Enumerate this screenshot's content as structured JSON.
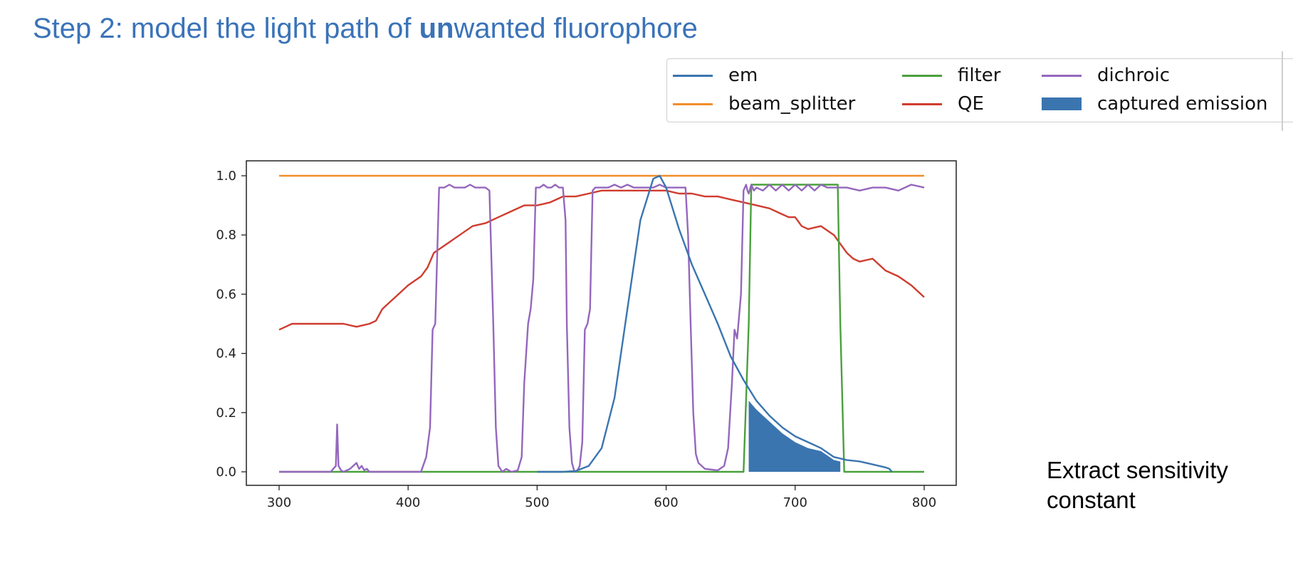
{
  "slide": {
    "title_prefix": "Step 2: model the light path of ",
    "title_bold": "un",
    "title_suffix": "wanted fluorophore",
    "note_line1": "Extract sensitivity",
    "note_line2": "constant"
  },
  "chart_data": {
    "type": "line",
    "title": "",
    "xlabel": "",
    "ylabel": "",
    "xlim": [
      300,
      800
    ],
    "ylim": [
      0.0,
      1.0
    ],
    "xticks": [
      300,
      400,
      500,
      600,
      700,
      800
    ],
    "yticks": [
      0.0,
      0.2,
      0.4,
      0.6,
      0.8,
      1.0
    ],
    "xtick_labels": [
      "300",
      "400",
      "500",
      "600",
      "700",
      "800"
    ],
    "ytick_labels": [
      "0.0",
      "0.2",
      "0.4",
      "0.6",
      "0.8",
      "1.0"
    ],
    "grid": false,
    "legend_position": "top-right, outside plot",
    "series": [
      {
        "name": "em",
        "color": "#3a75b0",
        "x": [
          500,
          520,
          530,
          540,
          550,
          560,
          570,
          580,
          590,
          595,
          600,
          610,
          620,
          630,
          640,
          650,
          660,
          670,
          680,
          690,
          700,
          710,
          720,
          730,
          740,
          750,
          760,
          770,
          773,
          775
        ],
        "y": [
          0,
          0,
          0.003,
          0.02,
          0.08,
          0.25,
          0.55,
          0.85,
          0.99,
          1.0,
          0.96,
          0.82,
          0.7,
          0.6,
          0.5,
          0.39,
          0.31,
          0.24,
          0.19,
          0.15,
          0.12,
          0.1,
          0.08,
          0.05,
          0.04,
          0.035,
          0.025,
          0.015,
          0.01,
          0
        ]
      },
      {
        "name": "beam_splitter",
        "color": "#f28e2b",
        "x": [
          300,
          800
        ],
        "y": [
          1.0,
          1.0
        ]
      },
      {
        "name": "filter",
        "color": "#4aa03c",
        "x": [
          300,
          660,
          664,
          666,
          733,
          735,
          738,
          800
        ],
        "y": [
          0,
          0,
          0.5,
          0.97,
          0.97,
          0.5,
          0,
          0
        ]
      },
      {
        "name": "QE",
        "color": "#d03c2f",
        "x": [
          300,
          305,
          310,
          320,
          330,
          340,
          350,
          360,
          370,
          375,
          380,
          385,
          390,
          400,
          410,
          415,
          420,
          430,
          440,
          450,
          460,
          470,
          480,
          490,
          500,
          510,
          520,
          530,
          540,
          550,
          560,
          570,
          580,
          590,
          600,
          610,
          620,
          630,
          640,
          650,
          660,
          670,
          680,
          690,
          695,
          700,
          705,
          710,
          720,
          730,
          735,
          740,
          745,
          750,
          760,
          770,
          780,
          790,
          800
        ],
        "y": [
          0.48,
          0.49,
          0.5,
          0.5,
          0.5,
          0.5,
          0.5,
          0.49,
          0.5,
          0.51,
          0.55,
          0.57,
          0.59,
          0.63,
          0.66,
          0.69,
          0.74,
          0.77,
          0.8,
          0.83,
          0.84,
          0.86,
          0.88,
          0.9,
          0.9,
          0.91,
          0.93,
          0.93,
          0.94,
          0.95,
          0.95,
          0.95,
          0.95,
          0.95,
          0.95,
          0.94,
          0.94,
          0.93,
          0.93,
          0.92,
          0.91,
          0.9,
          0.89,
          0.87,
          0.86,
          0.86,
          0.83,
          0.82,
          0.83,
          0.8,
          0.77,
          0.74,
          0.72,
          0.71,
          0.72,
          0.68,
          0.66,
          0.63,
          0.59
        ]
      },
      {
        "name": "dichroic",
        "color": "#9467bd",
        "x": [
          300,
          340,
          342,
          344,
          345,
          346,
          348,
          350,
          355,
          360,
          362,
          364,
          366,
          368,
          370,
          375,
          410,
          414,
          417,
          419,
          421,
          424,
          428,
          432,
          436,
          440,
          444,
          448,
          452,
          456,
          460,
          463,
          464,
          466,
          468,
          470,
          473,
          476,
          480,
          485,
          488,
          490,
          493,
          495,
          497,
          499,
          502,
          505,
          508,
          511,
          514,
          517,
          520,
          522,
          523,
          525,
          527,
          529,
          531,
          533,
          535,
          537,
          539,
          541,
          543,
          545,
          547,
          550,
          555,
          560,
          565,
          570,
          575,
          580,
          585,
          590,
          595,
          600,
          605,
          610,
          615,
          617,
          619,
          621,
          623,
          625,
          630,
          640,
          645,
          648,
          651,
          653,
          655,
          658,
          660,
          662,
          663,
          664,
          666,
          668,
          670,
          675,
          680,
          685,
          690,
          695,
          700,
          705,
          710,
          715,
          720,
          725,
          730,
          740,
          750,
          760,
          770,
          780,
          790,
          800
        ],
        "y": [
          0,
          0,
          0.01,
          0.02,
          0.16,
          0.02,
          0.005,
          0,
          0.01,
          0.03,
          0.01,
          0.02,
          0.005,
          0.01,
          0,
          0,
          0,
          0.05,
          0.15,
          0.48,
          0.5,
          0.96,
          0.96,
          0.97,
          0.96,
          0.96,
          0.96,
          0.97,
          0.96,
          0.96,
          0.96,
          0.95,
          0.8,
          0.5,
          0.15,
          0.02,
          0,
          0.01,
          0,
          0.005,
          0.05,
          0.3,
          0.5,
          0.55,
          0.65,
          0.96,
          0.96,
          0.97,
          0.96,
          0.96,
          0.97,
          0.96,
          0.96,
          0.85,
          0.5,
          0.15,
          0.03,
          0,
          0.003,
          0.02,
          0.1,
          0.48,
          0.5,
          0.55,
          0.95,
          0.96,
          0.96,
          0.96,
          0.96,
          0.97,
          0.96,
          0.97,
          0.96,
          0.96,
          0.96,
          0.96,
          0.97,
          0.96,
          0.96,
          0.96,
          0.96,
          0.8,
          0.5,
          0.2,
          0.06,
          0.03,
          0.01,
          0.005,
          0.02,
          0.08,
          0.3,
          0.48,
          0.45,
          0.6,
          0.95,
          0.97,
          0.95,
          0.94,
          0.97,
          0.95,
          0.96,
          0.95,
          0.97,
          0.95,
          0.97,
          0.95,
          0.97,
          0.95,
          0.97,
          0.95,
          0.97,
          0.96,
          0.96,
          0.96,
          0.95,
          0.96,
          0.96,
          0.95,
          0.97,
          0.96
        ]
      }
    ],
    "fill": {
      "name": "captured emission",
      "color": "#3a75b0",
      "x": [
        664,
        670,
        680,
        690,
        700,
        710,
        720,
        730,
        735
      ],
      "y": [
        0.24,
        0.21,
        0.17,
        0.13,
        0.1,
        0.08,
        0.07,
        0.04,
        0.035
      ]
    }
  }
}
